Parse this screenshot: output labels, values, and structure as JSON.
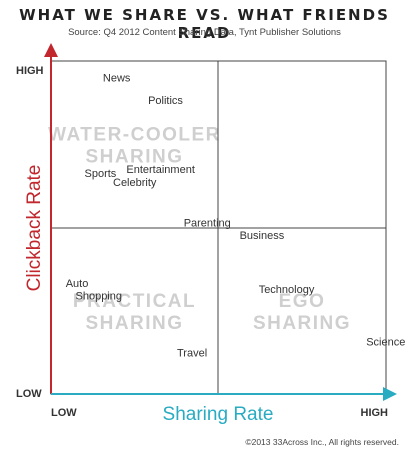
{
  "title": "WHAT WE SHARE VS. WHAT FRIENDS READ",
  "subtitle": "Source: Q4 2012 Content Sharing Data, Tynt Publisher Solutions",
  "copyright": "©2013 33Across Inc., All rights reserved.",
  "colors": {
    "y_axis": "#c1272d",
    "x_axis": "#29abc2",
    "quadrant_text": "#cfcfcf",
    "label": "#333333",
    "grid": "#444444"
  },
  "chart_data": {
    "type": "scatter",
    "title": "WHAT WE SHARE VS. WHAT FRIENDS READ",
    "subtitle": "Source: Q4 2012 Content Sharing Data, Tynt Publisher Solutions",
    "xlabel": "Sharing Rate",
    "ylabel": "Clickback Rate",
    "xlim": [
      0,
      1
    ],
    "ylim": [
      0,
      1
    ],
    "x_tick_labels": {
      "low": "LOW",
      "high": "HIGH"
    },
    "y_tick_labels": {
      "low": "LOW",
      "high": "HIGH"
    },
    "quadrants": [
      {
        "name": "top-left",
        "lines": [
          "WATER-COOLER",
          "SHARING"
        ]
      },
      {
        "name": "bottom-left",
        "lines": [
          "PRACTICAL",
          "SHARING"
        ]
      },
      {
        "name": "bottom-right",
        "lines": [
          "EGO",
          "SHARING"
        ]
      }
    ],
    "points": [
      {
        "label": "News",
        "x": 0.155,
        "y": 0.95
      },
      {
        "label": "Politics",
        "x": 0.29,
        "y": 0.883
      },
      {
        "label": "Entertainment",
        "x": 0.225,
        "y": 0.676
      },
      {
        "label": "Sports",
        "x": 0.1,
        "y": 0.664
      },
      {
        "label": "Celebrity",
        "x": 0.185,
        "y": 0.636
      },
      {
        "label": "Parenting",
        "x": 0.396,
        "y": 0.515
      },
      {
        "label": "Business",
        "x": 0.563,
        "y": 0.478
      },
      {
        "label": "Auto",
        "x": 0.044,
        "y": 0.333
      },
      {
        "label": "Shopping",
        "x": 0.073,
        "y": 0.296
      },
      {
        "label": "Technology",
        "x": 0.62,
        "y": 0.315
      },
      {
        "label": "Travel",
        "x": 0.376,
        "y": 0.124
      },
      {
        "label": "Science",
        "x": 0.941,
        "y": 0.157
      }
    ]
  }
}
